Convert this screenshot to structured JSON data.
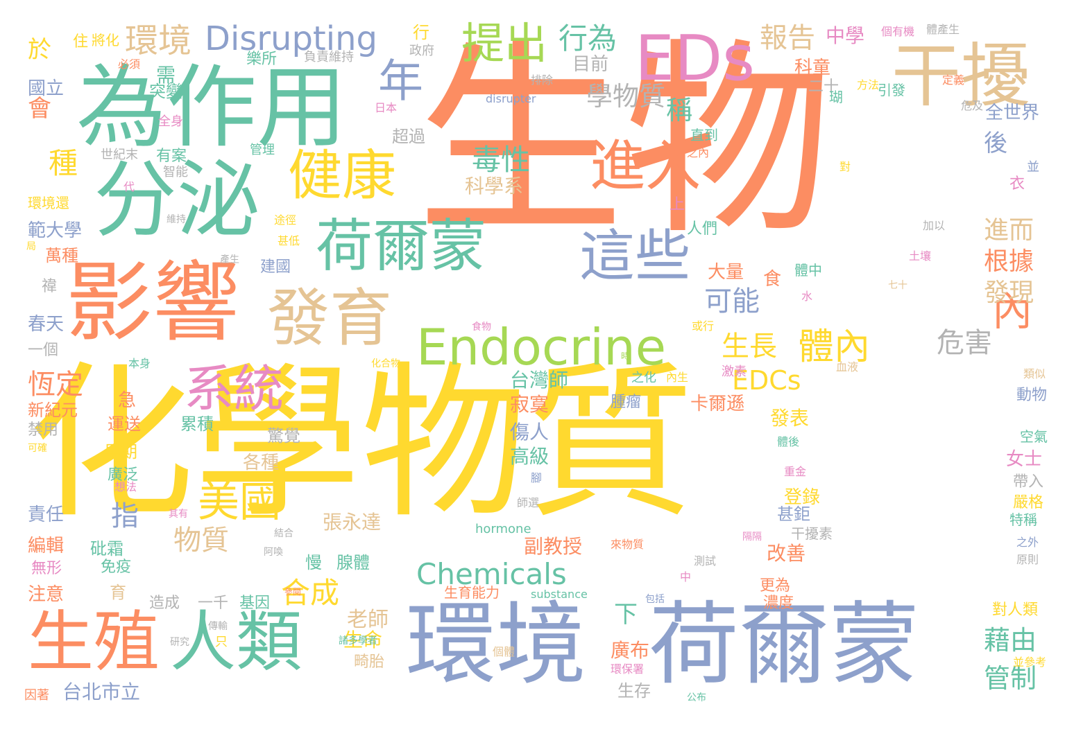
{
  "palette": {
    "orange": "#fc8d62",
    "teal": "#66c2a5",
    "blue": "#8da0cb",
    "yellow": "#ffd92f",
    "green": "#a6d854",
    "pink": "#e78ac3",
    "tan": "#e5c494",
    "gray": "#b3b3b3"
  },
  "words": [
    {
      "text": "生物",
      "color": "orange"
    },
    {
      "text": "化學物質",
      "color": "yellow"
    },
    {
      "text": "為作用",
      "color": "teal"
    },
    {
      "text": "分泌",
      "color": "teal"
    },
    {
      "text": "影響",
      "color": "orange"
    },
    {
      "text": "環境",
      "color": "blue"
    },
    {
      "text": "荷爾蒙",
      "color": "blue"
    },
    {
      "text": "荷爾蒙",
      "color": "teal"
    },
    {
      "text": "EDs",
      "color": "pink"
    },
    {
      "text": "干擾",
      "color": "tan"
    },
    {
      "text": "Endocrine",
      "color": "green"
    },
    {
      "text": "發育",
      "color": "tan"
    },
    {
      "text": "健康",
      "color": "yellow"
    },
    {
      "text": "進入",
      "color": "orange"
    },
    {
      "text": "這些",
      "color": "blue"
    },
    {
      "text": "人類",
      "color": "teal"
    },
    {
      "text": "生殖",
      "color": "orange"
    },
    {
      "text": "系統",
      "color": "pink"
    },
    {
      "text": "提出",
      "color": "green"
    },
    {
      "text": "年",
      "color": "blue"
    },
    {
      "text": "內",
      "color": "orange"
    },
    {
      "text": "Disrupting",
      "color": "blue"
    },
    {
      "text": "Chemicals",
      "color": "teal"
    },
    {
      "text": "美國",
      "color": "yellow"
    },
    {
      "text": "體內",
      "color": "yellow"
    },
    {
      "text": "環境",
      "color": "tan"
    },
    {
      "text": "行為",
      "color": "teal"
    },
    {
      "text": "報告",
      "color": "tan"
    },
    {
      "text": "學物質",
      "color": "gray"
    },
    {
      "text": "毒性",
      "color": "teal"
    },
    {
      "text": "種",
      "color": "yellow"
    },
    {
      "text": "生長",
      "color": "yellow"
    },
    {
      "text": "EDCs",
      "color": "yellow"
    },
    {
      "text": "危害",
      "color": "gray"
    },
    {
      "text": "可能",
      "color": "blue"
    },
    {
      "text": "稱",
      "color": "teal"
    },
    {
      "text": "進而",
      "color": "tan"
    },
    {
      "text": "根據",
      "color": "orange"
    },
    {
      "text": "發現",
      "color": "tan"
    },
    {
      "text": "恆定",
      "color": "orange"
    },
    {
      "text": "合成",
      "color": "yellow"
    },
    {
      "text": "指",
      "color": "blue"
    },
    {
      "text": "物質",
      "color": "tan"
    },
    {
      "text": "藉由",
      "color": "teal"
    },
    {
      "text": "管制",
      "color": "teal"
    },
    {
      "text": "台北市立",
      "color": "blue"
    },
    {
      "text": "老師",
      "color": "tan"
    },
    {
      "text": "下",
      "color": "teal"
    },
    {
      "text": "後",
      "color": "blue"
    },
    {
      "text": "會",
      "color": "orange"
    },
    {
      "text": "於",
      "color": "yellow"
    },
    {
      "text": "中學",
      "color": "pink"
    },
    {
      "text": "台灣師",
      "color": "teal"
    },
    {
      "text": "寂寞",
      "color": "orange"
    },
    {
      "text": "張永達",
      "color": "tan"
    },
    {
      "text": "副教授",
      "color": "orange"
    },
    {
      "text": "傷人",
      "color": "blue"
    },
    {
      "text": "高級",
      "color": "teal"
    },
    {
      "text": "卡爾遜",
      "color": "orange"
    },
    {
      "text": "發表",
      "color": "yellow"
    },
    {
      "text": "登錄",
      "color": "yellow"
    },
    {
      "text": "改善",
      "color": "orange"
    },
    {
      "text": "甚鉅",
      "color": "blue"
    },
    {
      "text": "科學系",
      "color": "tan"
    },
    {
      "text": "全世界",
      "color": "blue"
    },
    {
      "text": "目前",
      "color": "gray"
    },
    {
      "text": "二十",
      "color": "gray"
    },
    {
      "text": "超過",
      "color": "gray"
    },
    {
      "text": "樂所",
      "color": "teal"
    },
    {
      "text": "國立",
      "color": "blue"
    },
    {
      "text": "需",
      "color": "teal"
    },
    {
      "text": "突變",
      "color": "teal"
    },
    {
      "text": "有案",
      "color": "teal"
    },
    {
      "text": "智能",
      "color": "gray"
    },
    {
      "text": "世紀末",
      "color": "gray"
    },
    {
      "text": "範大學",
      "color": "blue"
    },
    {
      "text": "萬種",
      "color": "orange"
    },
    {
      "text": "春天",
      "color": "blue"
    },
    {
      "text": "一個",
      "color": "gray"
    },
    {
      "text": "新紀元",
      "color": "orange"
    },
    {
      "text": "禁用",
      "color": "gray"
    },
    {
      "text": "責任",
      "color": "blue"
    },
    {
      "text": "編輯",
      "color": "orange"
    },
    {
      "text": "無形",
      "color": "pink"
    },
    {
      "text": "注意",
      "color": "orange"
    },
    {
      "text": "因著",
      "color": "orange"
    },
    {
      "text": "建國",
      "color": "blue"
    },
    {
      "text": "大量",
      "color": "orange"
    },
    {
      "text": "人們",
      "color": "teal"
    },
    {
      "text": "上",
      "color": "pink"
    },
    {
      "text": "科童",
      "color": "orange"
    },
    {
      "text": "衣",
      "color": "pink"
    },
    {
      "text": "食",
      "color": "orange"
    },
    {
      "text": "體中",
      "color": "teal"
    },
    {
      "text": "驚覺",
      "color": "gray"
    },
    {
      "text": "各種",
      "color": "tan"
    },
    {
      "text": "累積",
      "color": "teal"
    },
    {
      "text": "運送",
      "color": "orange"
    },
    {
      "text": "早期",
      "color": "yellow"
    },
    {
      "text": "廣泛",
      "color": "teal"
    },
    {
      "text": "急",
      "color": "orange"
    },
    {
      "text": "砒霜",
      "color": "teal"
    },
    {
      "text": "免疫",
      "color": "teal"
    },
    {
      "text": "慢",
      "color": "teal"
    },
    {
      "text": "腺體",
      "color": "teal"
    },
    {
      "text": "育",
      "color": "tan"
    },
    {
      "text": "造成",
      "color": "gray"
    },
    {
      "text": "一千",
      "color": "gray"
    },
    {
      "text": "基因",
      "color": "teal"
    },
    {
      "text": "生命",
      "color": "yellow"
    },
    {
      "text": "畸胎",
      "color": "tan"
    },
    {
      "text": "生存",
      "color": "gray"
    },
    {
      "text": "廣布",
      "color": "orange"
    },
    {
      "text": "腫瘤",
      "color": "blue"
    },
    {
      "text": "女士",
      "color": "pink"
    },
    {
      "text": "帶入",
      "color": "gray"
    },
    {
      "text": "嚴格",
      "color": "yellow"
    },
    {
      "text": "特稱",
      "color": "teal"
    },
    {
      "text": "對人類",
      "color": "yellow"
    },
    {
      "text": "動物",
      "color": "blue"
    },
    {
      "text": "空氣",
      "color": "teal"
    },
    {
      "text": "更為",
      "color": "orange"
    },
    {
      "text": "濃度",
      "color": "orange"
    },
    {
      "text": "干擾素",
      "color": "gray"
    },
    {
      "text": "生育能力",
      "color": "orange"
    },
    {
      "text": "substance",
      "color": "teal"
    },
    {
      "text": "hormone",
      "color": "teal"
    },
    {
      "text": "disrupter",
      "color": "blue"
    },
    {
      "text": "行",
      "color": "yellow"
    },
    {
      "text": "住",
      "color": "yellow"
    },
    {
      "text": "將化",
      "color": "yellow"
    },
    {
      "text": "負責維持",
      "color": "gray"
    },
    {
      "text": "管理",
      "color": "teal"
    },
    {
      "text": "之內",
      "color": "orange"
    },
    {
      "text": "直到",
      "color": "teal"
    },
    {
      "text": "引發",
      "color": "teal"
    },
    {
      "text": "瑚",
      "color": "teal"
    },
    {
      "text": "排除",
      "color": "gray"
    },
    {
      "text": "方法",
      "color": "yellow"
    },
    {
      "text": "危及",
      "color": "gray"
    },
    {
      "text": "定義",
      "color": "orange"
    },
    {
      "text": "體產生",
      "color": "gray"
    },
    {
      "text": "個有機",
      "color": "pink"
    },
    {
      "text": "政府",
      "color": "gray"
    },
    {
      "text": "日本",
      "color": "pink"
    },
    {
      "text": "全身",
      "color": "pink"
    },
    {
      "text": "必須",
      "color": "orange"
    },
    {
      "text": "代",
      "color": "pink"
    },
    {
      "text": "環境還",
      "color": "yellow"
    },
    {
      "text": "維持",
      "color": "gray"
    },
    {
      "text": "途徑",
      "color": "yellow"
    },
    {
      "text": "甚低",
      "color": "yellow"
    },
    {
      "text": "局",
      "color": "yellow"
    },
    {
      "text": "產生",
      "color": "gray"
    },
    {
      "text": "禕",
      "color": "gray"
    },
    {
      "text": "對",
      "color": "yellow"
    },
    {
      "text": "並",
      "color": "blue"
    },
    {
      "text": "加以",
      "color": "gray"
    },
    {
      "text": "土壤",
      "color": "pink"
    },
    {
      "text": "水",
      "color": "pink"
    },
    {
      "text": "七十",
      "color": "tan"
    },
    {
      "text": "食物",
      "color": "pink"
    },
    {
      "text": "或行",
      "color": "yellow"
    },
    {
      "text": "類似",
      "color": "tan"
    },
    {
      "text": "血液",
      "color": "tan"
    },
    {
      "text": "激素",
      "color": "pink"
    },
    {
      "text": "化合物",
      "color": "yellow"
    },
    {
      "text": "本身",
      "color": "teal"
    },
    {
      "text": "之化",
      "color": "teal"
    },
    {
      "text": "內生",
      "color": "yellow"
    },
    {
      "text": "想法",
      "color": "pink"
    },
    {
      "text": "可確",
      "color": "yellow"
    },
    {
      "text": "其有",
      "color": "pink"
    },
    {
      "text": "時",
      "color": "green"
    },
    {
      "text": "師選",
      "color": "gray"
    },
    {
      "text": "結合",
      "color": "gray"
    },
    {
      "text": "阿喚",
      "color": "gray"
    },
    {
      "text": "來物質",
      "color": "orange"
    },
    {
      "text": "隔隔",
      "color": "pink"
    },
    {
      "text": "測試",
      "color": "gray"
    },
    {
      "text": "中",
      "color": "pink"
    },
    {
      "text": "包括",
      "color": "blue"
    },
    {
      "text": "傳輸",
      "color": "gray"
    },
    {
      "text": "研究",
      "color": "gray"
    },
    {
      "text": "只",
      "color": "yellow"
    },
    {
      "text": "諸多學者",
      "color": "teal"
    },
    {
      "text": "個體",
      "color": "tan"
    },
    {
      "text": "環保署",
      "color": "pink"
    },
    {
      "text": "公布",
      "color": "teal"
    },
    {
      "text": "並參考",
      "color": "yellow"
    },
    {
      "text": "之外",
      "color": "blue"
    },
    {
      "text": "原則",
      "color": "gray"
    },
    {
      "text": "重金",
      "color": "pink"
    },
    {
      "text": "體後",
      "color": "teal"
    },
    {
      "text": "腳",
      "color": "blue"
    },
    {
      "text": "參閱",
      "color": "orange"
    }
  ]
}
